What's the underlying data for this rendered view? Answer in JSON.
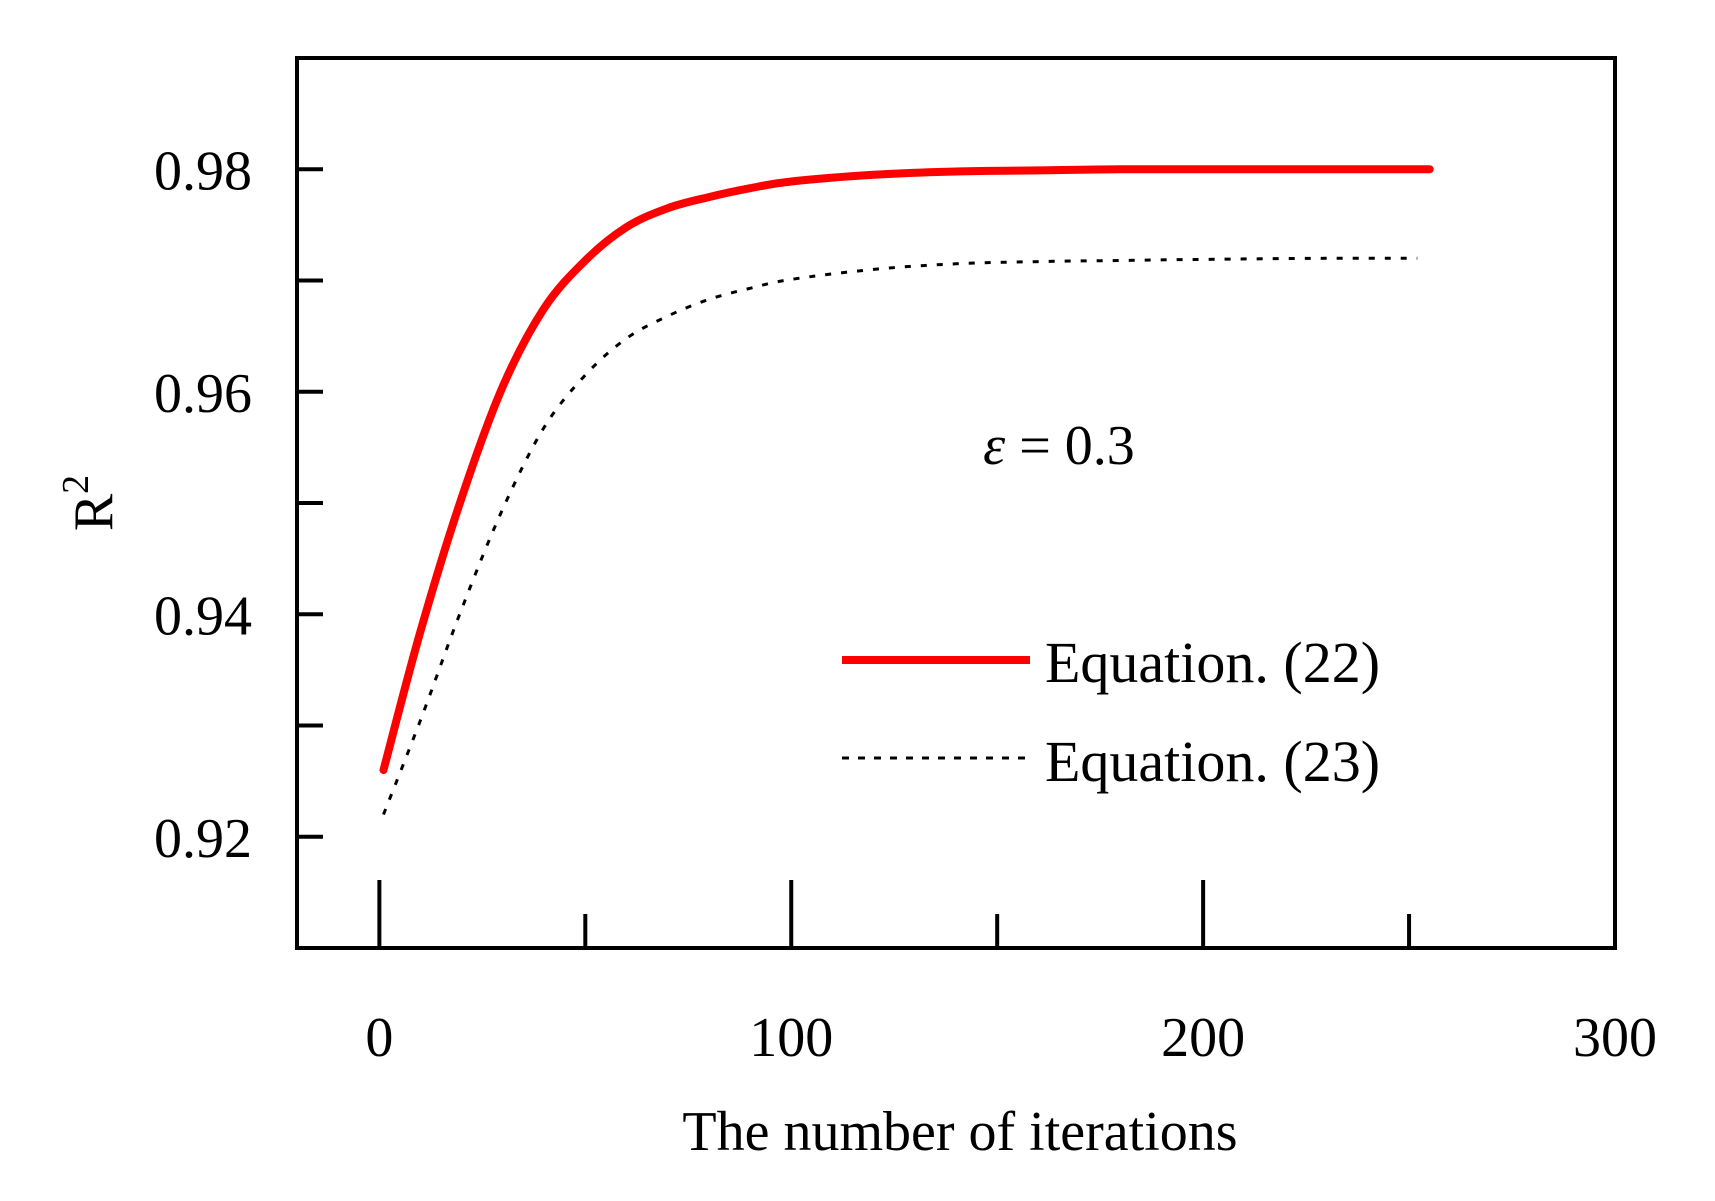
{
  "chart_data": {
    "type": "line",
    "title": "",
    "xlabel": "The number of iterations",
    "ylabel": "R",
    "ylabel_superscript": "2",
    "xlim": [
      -20,
      300
    ],
    "ylim": [
      0.91,
      0.99
    ],
    "x_ticks": [
      0,
      100,
      200,
      300
    ],
    "x_tick_labels": [
      "0",
      "100",
      "200",
      "300"
    ],
    "x_minor_ticks": [
      50,
      150,
      250
    ],
    "y_ticks": [
      0.92,
      0.94,
      0.96,
      0.98
    ],
    "y_tick_labels": [
      "0.92",
      "0.94",
      "0.96",
      "0.98"
    ],
    "y_minor_ticks": [
      0.93,
      0.95,
      0.97
    ],
    "grid": false,
    "legend_position": "lower-right",
    "annotation": {
      "symbol": "ε",
      "text": " = 0.3",
      "x": 165,
      "y": 0.9535
    },
    "series": [
      {
        "name": "Equation. (22)",
        "style": "solid",
        "color": "#ff0000",
        "x": [
          1,
          10,
          20,
          30,
          40,
          50,
          60,
          70,
          80,
          90,
          100,
          120,
          140,
          160,
          180,
          200,
          230,
          255
        ],
        "y": [
          0.926,
          0.9385,
          0.9505,
          0.9605,
          0.9675,
          0.9718,
          0.9748,
          0.9765,
          0.9775,
          0.9783,
          0.9789,
          0.9795,
          0.9798,
          0.9799,
          0.98,
          0.98,
          0.98,
          0.98
        ]
      },
      {
        "name": "Equation. (23)",
        "style": "dotted",
        "color": "#000000",
        "x": [
          1,
          10,
          20,
          30,
          40,
          50,
          60,
          70,
          80,
          90,
          100,
          120,
          140,
          160,
          180,
          200,
          230,
          252
        ],
        "y": [
          0.922,
          0.9305,
          0.9405,
          0.9495,
          0.9568,
          0.9615,
          0.9648,
          0.9668,
          0.9683,
          0.9693,
          0.9701,
          0.971,
          0.9715,
          0.9717,
          0.9718,
          0.9719,
          0.972,
          0.972
        ]
      }
    ]
  }
}
